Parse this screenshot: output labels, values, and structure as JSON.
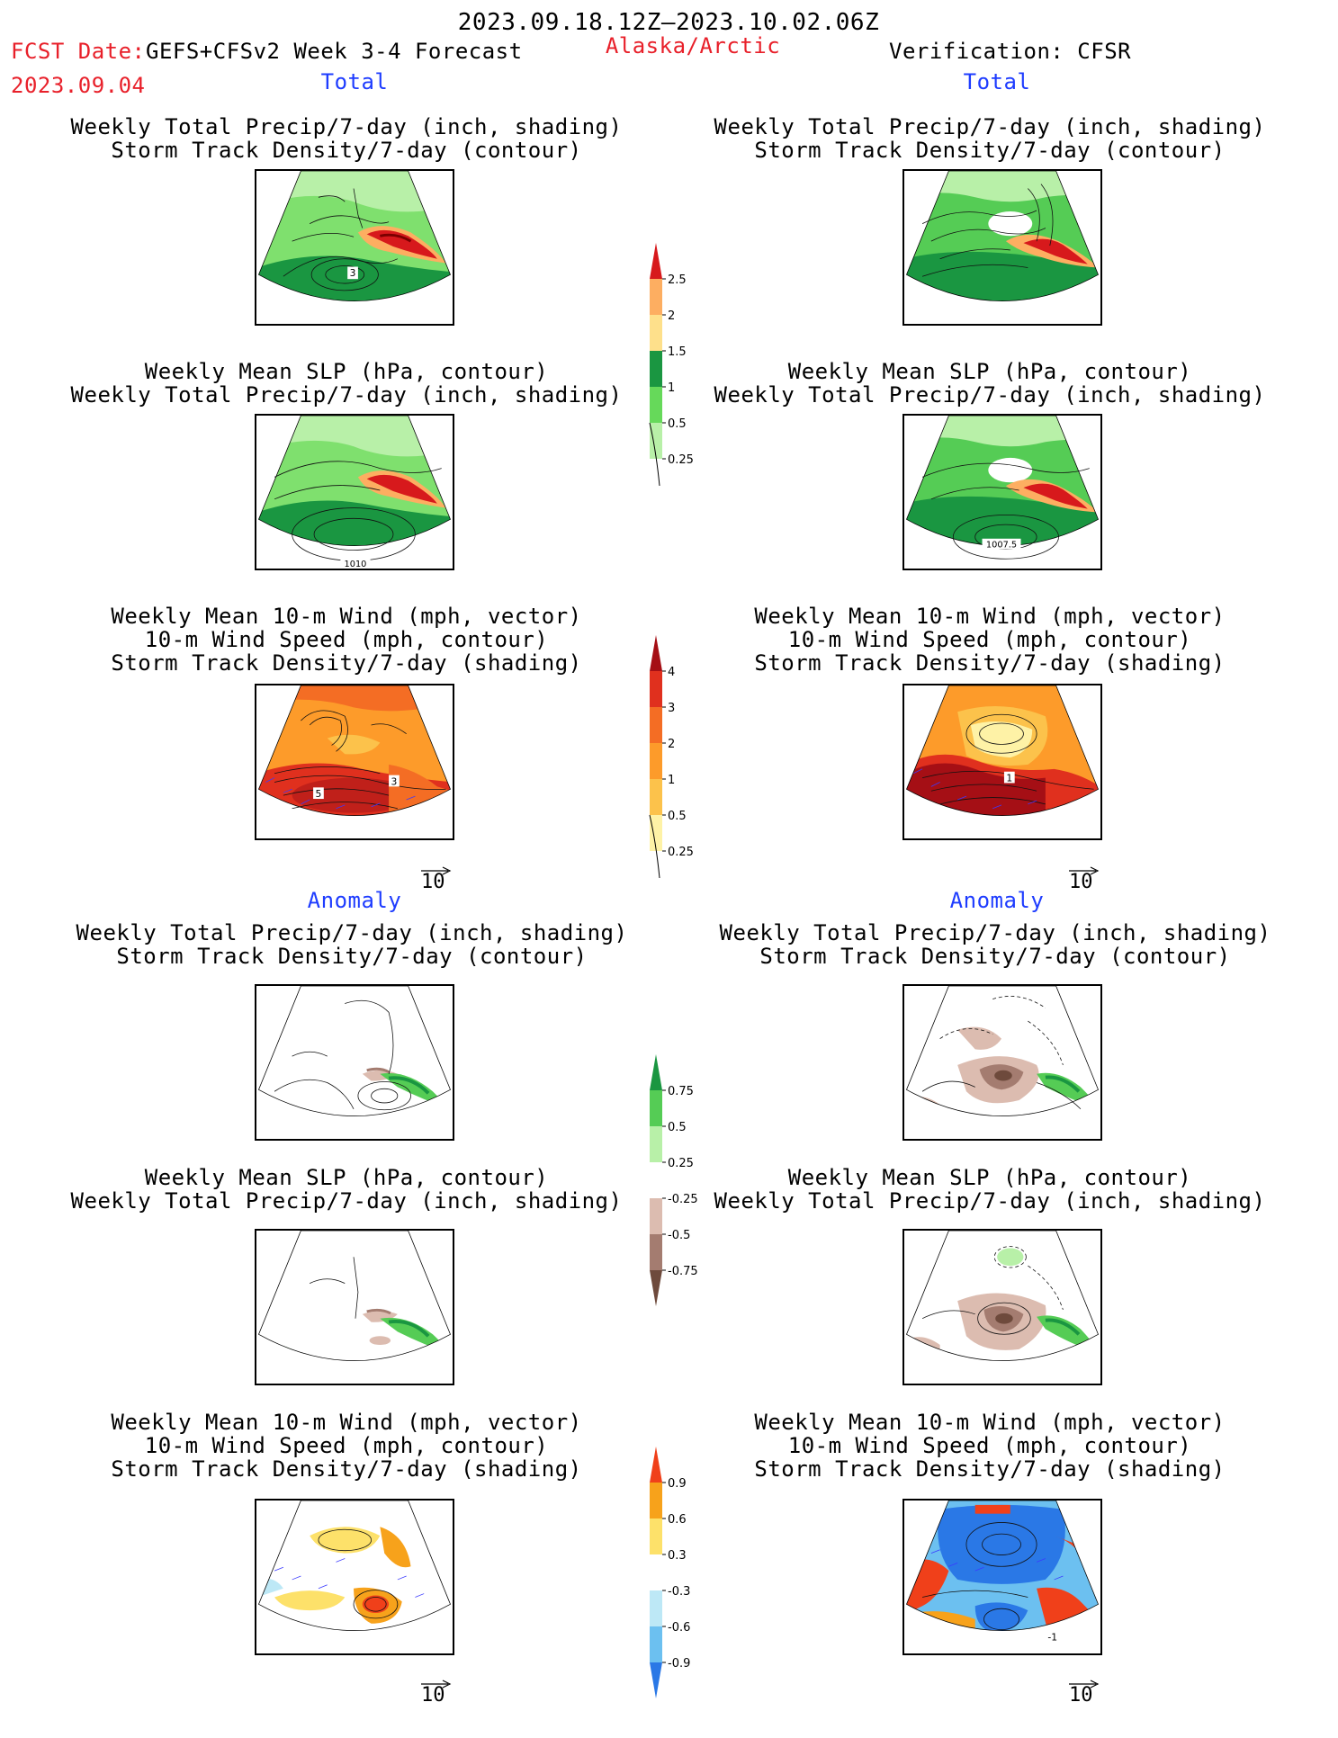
{
  "header": {
    "period": "2023.09.18.12Z–2023.10.02.06Z",
    "fcst_label": "FCST Date:",
    "model": "GEFS+CFSv2 Week 3-4 Forecast",
    "region": "Alaska/Arctic",
    "verification": "Verification: CFSR",
    "fcst_date": "2023.09.04"
  },
  "sections": {
    "total": "Total",
    "anomaly": "Anomaly"
  },
  "panel_titles": {
    "precip_storm": [
      "Weekly Total Precip/7-day (inch, shading)",
      "Storm Track Density/7-day (contour)"
    ],
    "slp_precip": [
      "Weekly Mean SLP (hPa, contour)",
      "Weekly Total Precip/7-day (inch, shading)"
    ],
    "wind_storm": [
      "Weekly Mean 10-m Wind (mph, vector)",
      "10-m Wind Speed (mph, contour)",
      "Storm Track Density/7-day (shading)"
    ]
  },
  "map_labels": {
    "fcst_precip_total": "3",
    "fcst_slp_total": "1010",
    "obs_slp_total": "1007.5",
    "fcst_wind_total_a": "5",
    "fcst_wind_total_b": "3",
    "obs_wind_total": "1",
    "obs_wind_anom": "-1"
  },
  "vector_ref": "10",
  "colorbars": {
    "precip_total": {
      "labels": [
        "2.5",
        "2",
        "1.5",
        "1",
        "0.5",
        "0.25"
      ],
      "colors": [
        "#d7191c",
        "#fdae61",
        "#fee08b",
        "#1a9641",
        "#66d95a",
        "#b8f0a8"
      ]
    },
    "storm_total": {
      "labels": [
        "4",
        "3",
        "2",
        "1",
        "0.5",
        "0.25"
      ],
      "colors": [
        "#a50f15",
        "#e0301e",
        "#f46d24",
        "#fd9b2a",
        "#fcc24b",
        "#fef2a6"
      ]
    },
    "precip_anom": {
      "labels": [
        "0.75",
        "0.5",
        "0.25",
        "-0.25",
        "-0.5",
        "-0.75"
      ],
      "colors": [
        "#1a9641",
        "#55cc55",
        "#b8f0a8",
        "#ffffff",
        "#dcbcb0",
        "#a47c70",
        "#6e4a3c"
      ]
    },
    "storm_anom": {
      "labels": [
        "0.9",
        "0.6",
        "0.3",
        "-0.3",
        "-0.6",
        "-0.9"
      ],
      "colors": [
        "#f0401a",
        "#f7a21b",
        "#fde16a",
        "#ffffff",
        "#bde8f6",
        "#6cc0f0",
        "#2a78e6"
      ]
    }
  },
  "chart_data": {
    "type": "heatmap",
    "description_units": "maps of forecast (left) and CFSR verification (right), totals and anomalies",
    "panels": [
      {
        "side": "forecast",
        "section": "Total",
        "fields": [
          "precip",
          "storm_track_density"
        ]
      },
      {
        "side": "forecast",
        "section": "Total",
        "fields": [
          "slp",
          "precip"
        ]
      },
      {
        "side": "forecast",
        "section": "Total",
        "fields": [
          "wind_vector",
          "wind_speed",
          "storm_track_density"
        ]
      },
      {
        "side": "verification",
        "section": "Total",
        "fields": [
          "precip",
          "storm_track_density"
        ]
      },
      {
        "side": "verification",
        "section": "Total",
        "fields": [
          "slp",
          "precip"
        ]
      },
      {
        "side": "verification",
        "section": "Total",
        "fields": [
          "wind_vector",
          "wind_speed",
          "storm_track_density"
        ]
      },
      {
        "side": "forecast",
        "section": "Anomaly",
        "fields": [
          "precip",
          "storm_track_density"
        ]
      },
      {
        "side": "forecast",
        "section": "Anomaly",
        "fields": [
          "slp",
          "precip"
        ]
      },
      {
        "side": "forecast",
        "section": "Anomaly",
        "fields": [
          "wind_vector",
          "wind_speed",
          "storm_track_density"
        ]
      },
      {
        "side": "verification",
        "section": "Anomaly",
        "fields": [
          "precip",
          "storm_track_density"
        ]
      },
      {
        "side": "verification",
        "section": "Anomaly",
        "fields": [
          "slp",
          "precip"
        ]
      },
      {
        "side": "verification",
        "section": "Anomaly",
        "fields": [
          "wind_vector",
          "wind_speed",
          "storm_track_density"
        ]
      }
    ]
  }
}
